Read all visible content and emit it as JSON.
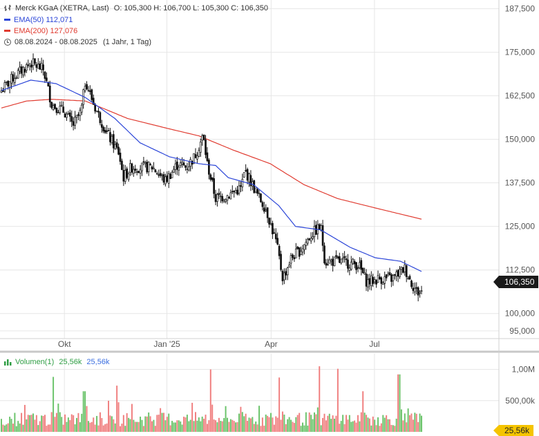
{
  "header": {
    "instrument": "Merck KGaA (XETRA, Last)",
    "ohlc": "O: 105,300  H: 106,700  L: 105,300  C: 106,350",
    "ema50_label": "EMA(50)",
    "ema50_value": "112,071",
    "ema200_label": "EMA(200)",
    "ema200_value": "127,076",
    "range": "08.08.2024 - 08.08.2025",
    "range_detail": "(1 Jahr, 1 Tag)"
  },
  "volume_header": {
    "label": "Volumen(1)",
    "value_green": "25,56k",
    "value_blue": "25,56k"
  },
  "last_price_tag": "106,350",
  "last_volume_tag": "25,56k",
  "colors": {
    "ema50": "#2b45d8",
    "ema200": "#e03a2f",
    "up": "#6cc46c",
    "down": "#f08080",
    "candle": "#111111",
    "grid": "#e6e6e6"
  },
  "chart_data": {
    "type": "candlestick",
    "x_ticks": [
      "Okt",
      "Jan '25",
      "Apr",
      "Jul"
    ],
    "y_ticks": [
      95000,
      100000,
      112500,
      125000,
      137500,
      150000,
      162500,
      175000,
      187500
    ],
    "y_tick_labels": [
      "95,000",
      "100,000",
      "112,500",
      "125,000",
      "137,500",
      "150,000",
      "162,500",
      "175,000",
      "187,500"
    ],
    "ylim": [
      92800,
      190000
    ],
    "price_keypoints": [
      {
        "x": 0.0,
        "v": 164
      },
      {
        "x": 0.03,
        "v": 168
      },
      {
        "x": 0.07,
        "v": 172
      },
      {
        "x": 0.1,
        "v": 170
      },
      {
        "x": 0.12,
        "v": 160
      },
      {
        "x": 0.15,
        "v": 158
      },
      {
        "x": 0.17,
        "v": 154
      },
      {
        "x": 0.19,
        "v": 158
      },
      {
        "x": 0.2,
        "v": 167
      },
      {
        "x": 0.22,
        "v": 160
      },
      {
        "x": 0.25,
        "v": 152
      },
      {
        "x": 0.28,
        "v": 146
      },
      {
        "x": 0.29,
        "v": 139
      },
      {
        "x": 0.31,
        "v": 142
      },
      {
        "x": 0.36,
        "v": 142
      },
      {
        "x": 0.39,
        "v": 138
      },
      {
        "x": 0.42,
        "v": 143
      },
      {
        "x": 0.44,
        "v": 142
      },
      {
        "x": 0.46,
        "v": 145
      },
      {
        "x": 0.48,
        "v": 151
      },
      {
        "x": 0.49,
        "v": 143
      },
      {
        "x": 0.51,
        "v": 133
      },
      {
        "x": 0.54,
        "v": 134
      },
      {
        "x": 0.57,
        "v": 136
      },
      {
        "x": 0.58,
        "v": 141
      },
      {
        "x": 0.61,
        "v": 134
      },
      {
        "x": 0.63,
        "v": 130
      },
      {
        "x": 0.655,
        "v": 120
      },
      {
        "x": 0.67,
        "v": 110
      },
      {
        "x": 0.69,
        "v": 116
      },
      {
        "x": 0.71,
        "v": 118
      },
      {
        "x": 0.74,
        "v": 123
      },
      {
        "x": 0.76,
        "v": 125
      },
      {
        "x": 0.77,
        "v": 115
      },
      {
        "x": 0.8,
        "v": 115
      },
      {
        "x": 0.85,
        "v": 114
      },
      {
        "x": 0.87,
        "v": 109
      },
      {
        "x": 0.9,
        "v": 110
      },
      {
        "x": 0.93,
        "v": 110
      },
      {
        "x": 0.96,
        "v": 113
      },
      {
        "x": 0.975,
        "v": 109
      },
      {
        "x": 0.99,
        "v": 106
      },
      {
        "x": 1.0,
        "v": 106.35
      }
    ],
    "ema50_keypoints": [
      {
        "x": 0.0,
        "v": 164
      },
      {
        "x": 0.07,
        "v": 167
      },
      {
        "x": 0.13,
        "v": 166
      },
      {
        "x": 0.2,
        "v": 162
      },
      {
        "x": 0.27,
        "v": 156
      },
      {
        "x": 0.33,
        "v": 149
      },
      {
        "x": 0.4,
        "v": 145
      },
      {
        "x": 0.47,
        "v": 143
      },
      {
        "x": 0.51,
        "v": 142.5
      },
      {
        "x": 0.54,
        "v": 139
      },
      {
        "x": 0.6,
        "v": 137
      },
      {
        "x": 0.66,
        "v": 131
      },
      {
        "x": 0.7,
        "v": 125
      },
      {
        "x": 0.76,
        "v": 124
      },
      {
        "x": 0.83,
        "v": 119
      },
      {
        "x": 0.89,
        "v": 116
      },
      {
        "x": 0.95,
        "v": 115
      },
      {
        "x": 1.0,
        "v": 112.07
      }
    ],
    "ema200_keypoints": [
      {
        "x": 0.0,
        "v": 159
      },
      {
        "x": 0.06,
        "v": 161
      },
      {
        "x": 0.12,
        "v": 161.5
      },
      {
        "x": 0.2,
        "v": 161
      },
      {
        "x": 0.3,
        "v": 156
      },
      {
        "x": 0.4,
        "v": 153
      },
      {
        "x": 0.47,
        "v": 151
      },
      {
        "x": 0.55,
        "v": 147
      },
      {
        "x": 0.64,
        "v": 143
      },
      {
        "x": 0.72,
        "v": 137
      },
      {
        "x": 0.8,
        "v": 133
      },
      {
        "x": 0.9,
        "v": 130
      },
      {
        "x": 1.0,
        "v": 127.08
      }
    ],
    "volume": {
      "y_ticks": [
        500,
        1000
      ],
      "y_tick_labels": [
        "500,00k",
        "1,00M"
      ],
      "ylim": [
        0,
        1250
      ],
      "unit": "k",
      "spikes": [
        {
          "x": 0.123,
          "v": 880
        },
        {
          "x": 0.197,
          "v": 650
        },
        {
          "x": 0.275,
          "v": 740
        },
        {
          "x": 0.378,
          "v": 760
        },
        {
          "x": 0.5,
          "v": 1000
        },
        {
          "x": 0.57,
          "v": 650
        },
        {
          "x": 0.66,
          "v": 870
        },
        {
          "x": 0.756,
          "v": 1050
        },
        {
          "x": 0.8,
          "v": 1010
        },
        {
          "x": 0.86,
          "v": 650
        },
        {
          "x": 0.946,
          "v": 920
        }
      ]
    }
  }
}
